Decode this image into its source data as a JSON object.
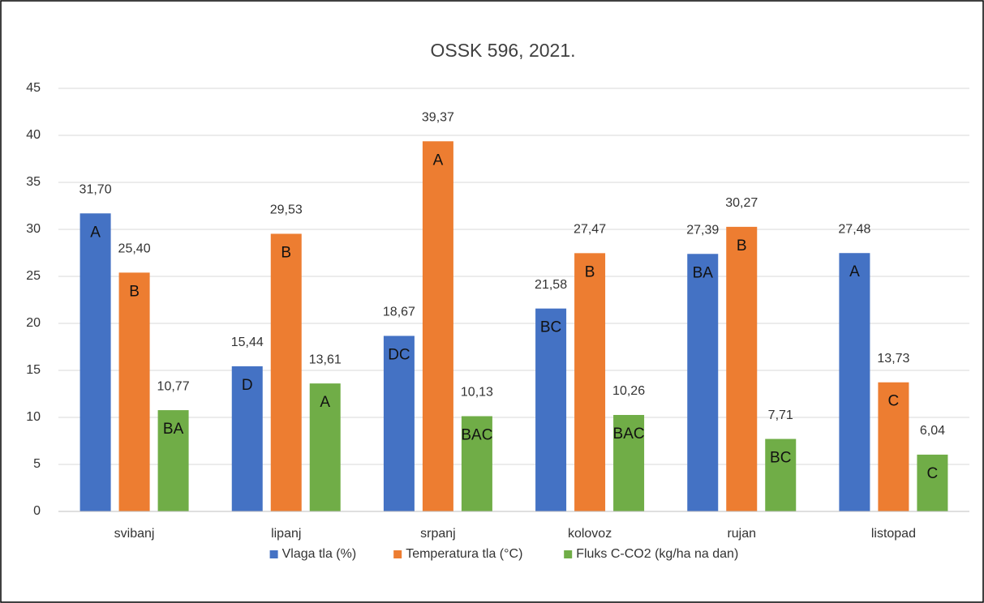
{
  "chart_data": {
    "type": "bar",
    "title": "OSSK 596, 2021.",
    "categories": [
      "svibanj",
      "lipanj",
      "srpanj",
      "kolovoz",
      "rujan",
      "listopad"
    ],
    "series": [
      {
        "name": "Vlaga tla (%)",
        "color": "#4472c4",
        "values": [
          31.7,
          15.44,
          18.67,
          21.58,
          27.39,
          27.48
        ],
        "value_labels": [
          "31,70",
          "15,44",
          "18,67",
          "21,58",
          "27,39",
          "27,48"
        ],
        "letters": [
          "A",
          "D",
          "DC",
          "BC",
          "BA",
          "A"
        ]
      },
      {
        "name": "Temperatura tla (°C)",
        "color": "#ed7d31",
        "values": [
          25.4,
          29.53,
          39.37,
          27.47,
          30.27,
          13.73
        ],
        "value_labels": [
          "25,40",
          "29,53",
          "39,37",
          "27,47",
          "30,27",
          "13,73"
        ],
        "letters": [
          "B",
          "B",
          "A",
          "B",
          "B",
          "C"
        ]
      },
      {
        "name": "Fluks C-CO2 (kg/ha na dan)",
        "color": "#70ad47",
        "values": [
          10.77,
          13.61,
          10.13,
          10.26,
          7.71,
          6.04
        ],
        "value_labels": [
          "10,77",
          "13,61",
          "10,13",
          "10,26",
          "7,71",
          "6,04"
        ],
        "letters": [
          "BA",
          "A",
          "BAC",
          "BAC",
          "BC",
          "C"
        ]
      }
    ],
    "ylim": [
      0,
      45
    ],
    "yticks": [
      0,
      5,
      10,
      15,
      20,
      25,
      30,
      35,
      40,
      45
    ],
    "grid": true,
    "legend": "bottom"
  }
}
